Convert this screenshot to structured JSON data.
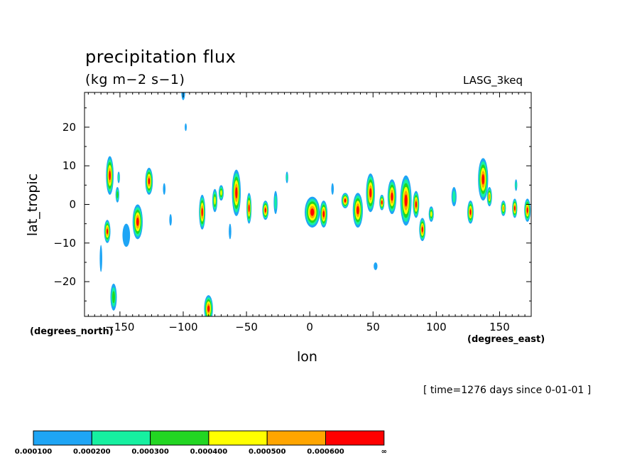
{
  "header": {
    "title": "precipitation flux",
    "units": "(kg m−2 s−1)",
    "run_name": "LASG_3keq"
  },
  "footer": {
    "time_label": "[ time=1276 days since 0-01-01 ]"
  },
  "chart_data": {
    "type": "heatmap",
    "title": "precipitation flux",
    "subtitle": "(kg m−2 s−1)",
    "xlabel": "lon",
    "ylabel": "lat_tropic",
    "x_units_label": "(degrees_east)",
    "y_units_label": "(degrees_north)",
    "xlim": [
      -178,
      175
    ],
    "ylim": [
      -29,
      29
    ],
    "x_ticks": [
      -150,
      -100,
      -50,
      0,
      50,
      100,
      150
    ],
    "x_tick_labels": [
      "−150",
      "−100",
      "−50",
      "0",
      "50",
      "100",
      "150"
    ],
    "y_ticks": [
      -20,
      -10,
      0,
      10,
      20
    ],
    "y_tick_labels": [
      "−20",
      "−10",
      "0",
      "10",
      "20"
    ],
    "grid": false,
    "levels": [
      0.0001,
      0.0002,
      0.0003,
      0.0004,
      0.0005,
      0.0006
    ],
    "colorbar_labels": [
      "0.000100",
      "0.000200",
      "0.000300",
      "0.000400",
      "0.000500",
      "0.000600",
      "∞"
    ],
    "colors": [
      "#1ea5f5",
      "#16f0a0",
      "#22d622",
      "#ffff00",
      "#ffa500",
      "#ff0000"
    ],
    "features": [
      {
        "lon": -158,
        "lat": 7.5,
        "rlon": 3,
        "rlat": 5,
        "peak": 6
      },
      {
        "lon": -152,
        "lat": 2.5,
        "rlon": 1.5,
        "rlat": 2,
        "peak": 3
      },
      {
        "lon": -151,
        "lat": 7,
        "rlon": 1,
        "rlat": 1.5,
        "peak": 2
      },
      {
        "lon": -160,
        "lat": -7,
        "rlon": 2.5,
        "rlat": 3,
        "peak": 6
      },
      {
        "lon": -136,
        "lat": -4.5,
        "rlon": 4,
        "rlat": 4.5,
        "peak": 6
      },
      {
        "lon": -145,
        "lat": -8,
        "rlon": 3,
        "rlat": 3,
        "peak": 1
      },
      {
        "lon": -127,
        "lat": 6,
        "rlon": 3,
        "rlat": 3.5,
        "peak": 6
      },
      {
        "lon": -115,
        "lat": 4,
        "rlon": 1,
        "rlat": 1.5,
        "peak": 1
      },
      {
        "lon": -110,
        "lat": -4,
        "rlon": 1,
        "rlat": 1.5,
        "peak": 1
      },
      {
        "lon": -85,
        "lat": -2,
        "rlon": 2.5,
        "rlat": 4.5,
        "peak": 6
      },
      {
        "lon": -75,
        "lat": 1,
        "rlon": 2,
        "rlat": 3,
        "peak": 4
      },
      {
        "lon": -70,
        "lat": 3,
        "rlon": 2,
        "rlat": 2,
        "peak": 4
      },
      {
        "lon": -58,
        "lat": 3,
        "rlon": 3.5,
        "rlat": 6,
        "peak": 6
      },
      {
        "lon": -48,
        "lat": -1,
        "rlon": 2,
        "rlat": 4,
        "peak": 6
      },
      {
        "lon": -35,
        "lat": -1.5,
        "rlon": 2.5,
        "rlat": 2.5,
        "peak": 6
      },
      {
        "lon": -27,
        "lat": 0.5,
        "rlon": 1.5,
        "rlat": 3,
        "peak": 2
      },
      {
        "lon": -18,
        "lat": 7,
        "rlon": 1,
        "rlat": 1.5,
        "peak": 2
      },
      {
        "lon": 2,
        "lat": -2,
        "rlon": 6,
        "rlat": 4,
        "peak": 6
      },
      {
        "lon": 11,
        "lat": -2.5,
        "rlon": 3,
        "rlat": 3.5,
        "peak": 6
      },
      {
        "lon": 28,
        "lat": 1,
        "rlon": 3,
        "rlat": 2,
        "peak": 6
      },
      {
        "lon": 38,
        "lat": -1.5,
        "rlon": 4,
        "rlat": 4.5,
        "peak": 6
      },
      {
        "lon": 48,
        "lat": 3,
        "rlon": 3.5,
        "rlat": 5,
        "peak": 6
      },
      {
        "lon": 57,
        "lat": 0.5,
        "rlon": 2,
        "rlat": 2,
        "peak": 6
      },
      {
        "lon": 65,
        "lat": 2,
        "rlon": 3.5,
        "rlat": 4.5,
        "peak": 6
      },
      {
        "lon": 76,
        "lat": 1,
        "rlon": 4.5,
        "rlat": 6.5,
        "peak": 6
      },
      {
        "lon": 84,
        "lat": 0,
        "rlon": 2.5,
        "rlat": 3.5,
        "peak": 6
      },
      {
        "lon": 89,
        "lat": -6.5,
        "rlon": 2.5,
        "rlat": 3,
        "peak": 6
      },
      {
        "lon": 96,
        "lat": -2.5,
        "rlon": 2,
        "rlat": 2,
        "peak": 4
      },
      {
        "lon": 114,
        "lat": 2,
        "rlon": 2,
        "rlat": 2.5,
        "peak": 2
      },
      {
        "lon": 127,
        "lat": -2,
        "rlon": 2.5,
        "rlat": 3,
        "peak": 6
      },
      {
        "lon": 137,
        "lat": 6.5,
        "rlon": 4,
        "rlat": 5.5,
        "peak": 6
      },
      {
        "lon": 142,
        "lat": 2,
        "rlon": 2,
        "rlat": 2.5,
        "peak": 5
      },
      {
        "lon": 153,
        "lat": -1,
        "rlon": 2,
        "rlat": 2,
        "peak": 5
      },
      {
        "lon": 162,
        "lat": -1,
        "rlon": 2,
        "rlat": 2.5,
        "peak": 6
      },
      {
        "lon": 163,
        "lat": 5,
        "rlon": 1,
        "rlat": 1.5,
        "peak": 2
      },
      {
        "lon": 172,
        "lat": -1.5,
        "rlon": 2.5,
        "rlat": 3,
        "peak": 6
      },
      {
        "lon": -155,
        "lat": -24,
        "rlon": 2.5,
        "rlat": 3.5,
        "peak": 3
      },
      {
        "lon": -165,
        "lat": -14,
        "rlon": 1,
        "rlat": 3.5,
        "peak": 1
      },
      {
        "lon": -80,
        "lat": -27,
        "rlon": 3.5,
        "rlat": 3.5,
        "peak": 6
      },
      {
        "lon": -100,
        "lat": 29,
        "rlon": 1.5,
        "rlat": 2,
        "peak": 1
      },
      {
        "lon": -98,
        "lat": 20,
        "rlon": 0.8,
        "rlat": 1,
        "peak": 1
      },
      {
        "lon": -63,
        "lat": -7,
        "rlon": 1,
        "rlat": 2,
        "peak": 1
      },
      {
        "lon": 52,
        "lat": -16,
        "rlon": 1.5,
        "rlat": 1,
        "peak": 1
      },
      {
        "lon": 18,
        "lat": 4,
        "rlon": 1,
        "rlat": 1.5,
        "peak": 1
      }
    ]
  }
}
